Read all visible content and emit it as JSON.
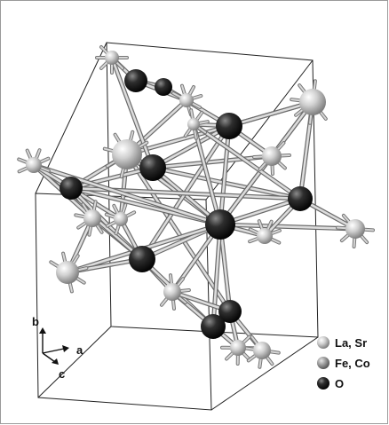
{
  "axes": {
    "b": "b",
    "a": "a",
    "c": "c"
  },
  "legend": [
    {
      "label": "La, Sr",
      "color": "#c9c9c9"
    },
    {
      "label": "Fe, Co",
      "color": "#8f8f8f"
    },
    {
      "label": "O",
      "color": "#262626"
    }
  ]
}
